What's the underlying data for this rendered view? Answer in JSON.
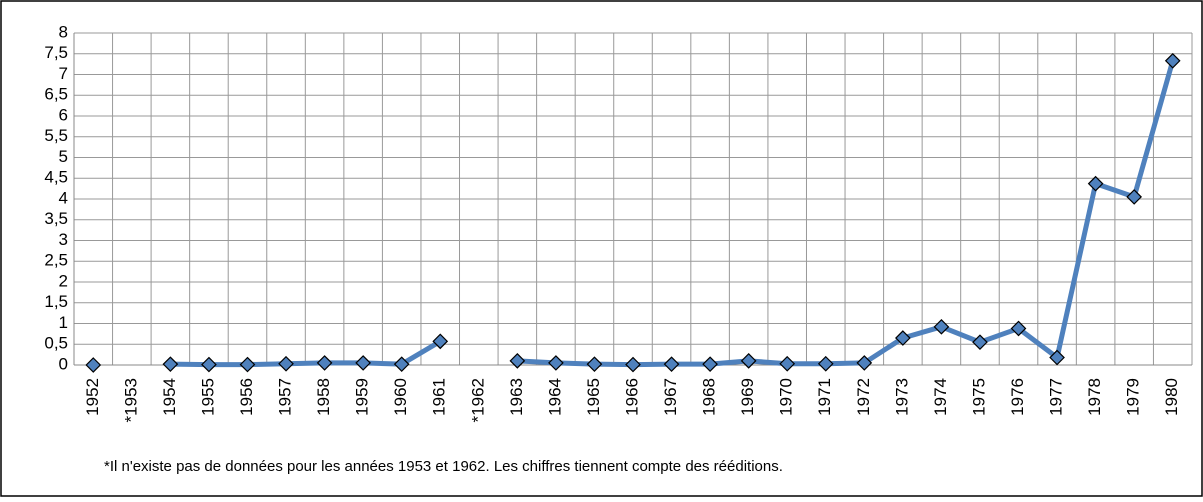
{
  "chart_data": {
    "type": "line",
    "categories": [
      "1952",
      "*1953",
      "1954",
      "1955",
      "1956",
      "1957",
      "1958",
      "1959",
      "1960",
      "1961",
      "*1962",
      "1963",
      "1964",
      "1965",
      "1966",
      "1967",
      "1968",
      "1969",
      "1970",
      "1971",
      "1972",
      "1973",
      "1974",
      "1975",
      "1976",
      "1977",
      "1978",
      "1979",
      "1980"
    ],
    "series": [
      {
        "color": "#4f81bd",
        "values": [
          0,
          null,
          0.02,
          0.01,
          0.01,
          0.03,
          0.05,
          0.05,
          0.02,
          0.57,
          null,
          0.1,
          0.05,
          0.02,
          0.01,
          0.02,
          0.02,
          0.1,
          0.03,
          0.03,
          0.05,
          0.65,
          0.92,
          0.55,
          0.88,
          0.18,
          4.37,
          4.05,
          7.33
        ]
      }
    ],
    "ylim": [
      0,
      8
    ],
    "yticks": [
      0,
      {
        "value": 0.5,
        "label": "0,5"
      },
      1,
      {
        "value": 1.5,
        "label": "1,5"
      },
      2,
      {
        "value": 2.5,
        "label": "2,5"
      },
      3,
      {
        "value": 3.5,
        "label": "3,5"
      },
      4,
      {
        "value": 4.5,
        "label": "4,5"
      },
      5,
      {
        "value": 5.5,
        "label": "5,5"
      },
      6,
      {
        "value": 6.5,
        "label": "6,5"
      },
      7,
      {
        "value": 7.5,
        "label": "7,5"
      },
      8
    ],
    "grid": true,
    "footnote": "*Il n'existe pas de données pour les années 1953 et 1962.  Les chiffres tiennent compte des rééditions."
  }
}
